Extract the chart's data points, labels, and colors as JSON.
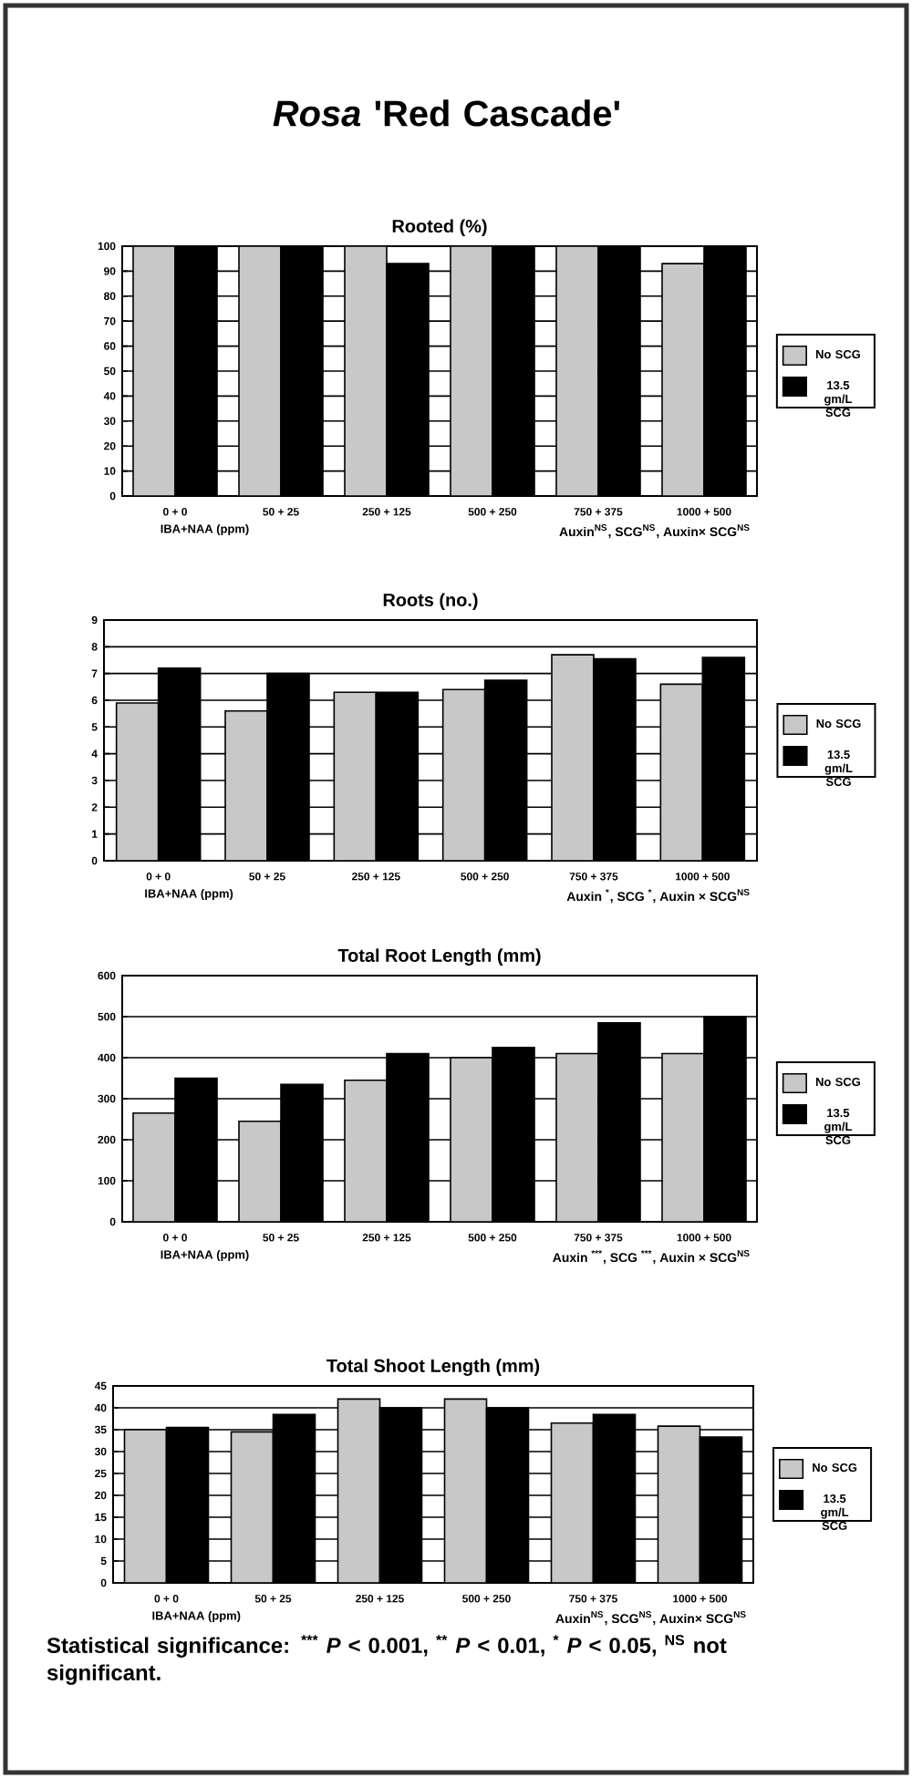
{
  "chart_data": [
    {
      "type": "bar",
      "title": "*Rosa* 'Red Cascade'",
      "subtitle": "Rooted (%)",
      "xlabel": "IBA+NAA (ppm)",
      "categories": [
        "0 + 0",
        "50 + 25",
        "250 + 125",
        "500 + 250",
        "750 + 375",
        "1000 + 500"
      ],
      "series": [
        {
          "name": "No SCG",
          "color": "#c8c8c8",
          "values": [
            100,
            100,
            100,
            100,
            100,
            93
          ]
        },
        {
          "name": "13.5 gm/L SCG",
          "color": "#000000",
          "values": [
            100,
            100,
            93,
            100,
            100,
            100
          ]
        }
      ],
      "ylim": [
        0,
        100
      ],
      "yticks": [
        0,
        10,
        20,
        30,
        40,
        50,
        60,
        70,
        80,
        90,
        100
      ],
      "grid": "y",
      "legend": "right",
      "annotations": [
        "Auxin$^{NS}$, SCG$^{NS}$, Auxin× SCG$^{NS}$"
      ]
    },
    {
      "type": "bar",
      "title": "Roots (no.)",
      "xlabel": "IBA+NAA (ppm)",
      "categories": [
        "0 + 0",
        "50 + 25",
        "250 + 125",
        "500 + 250",
        "750 + 375",
        "1000 + 500"
      ],
      "series": [
        {
          "name": "No SCG",
          "color": "#c8c8c8",
          "values": [
            5.9,
            5.6,
            6.3,
            6.4,
            7.7,
            6.6
          ]
        },
        {
          "name": "13.5 gm/L SCG",
          "color": "#000000",
          "values": [
            7.2,
            7.0,
            6.3,
            6.75,
            7.55,
            7.6
          ]
        }
      ],
      "ylim": [
        0,
        9
      ],
      "yticks": [
        0,
        1,
        2,
        3,
        4,
        5,
        6,
        7,
        8,
        9
      ],
      "grid": "y",
      "legend": "right",
      "annotations": [
        "Auxin $^{*}$, SCG $^{*}$, Auxin × SCG$^{NS}$"
      ]
    },
    {
      "type": "bar",
      "title": "Total Root Length (mm)",
      "xlabel": "IBA+NAA (ppm)",
      "categories": [
        "0 + 0",
        "50 + 25",
        "250 + 125",
        "500 + 250",
        "750 + 375",
        "1000 + 500"
      ],
      "series": [
        {
          "name": "No SCG",
          "color": "#c8c8c8",
          "values": [
            265,
            245,
            345,
            400,
            410,
            410
          ]
        },
        {
          "name": "13.5 gm/L SCG",
          "color": "#000000",
          "values": [
            350,
            335,
            410,
            425,
            485,
            500
          ]
        }
      ],
      "ylim": [
        0,
        600
      ],
      "yticks": [
        0,
        100,
        200,
        300,
        400,
        500,
        600
      ],
      "grid": "y",
      "legend": "right",
      "annotations": [
        "Auxin $^{***}$, SCG $^{***}$, Auxin × SCG$^{NS}$"
      ]
    },
    {
      "type": "bar",
      "title": "Total Shoot Length (mm)",
      "xlabel": "IBA+NAA (ppm)",
      "categories": [
        "0 + 0",
        "50 + 25",
        "250 + 125",
        "500 + 250",
        "750 + 375",
        "1000 + 500"
      ],
      "series": [
        {
          "name": "No SCG",
          "color": "#c8c8c8",
          "values": [
            35,
            34.5,
            42,
            42,
            36.5,
            35.8
          ]
        },
        {
          "name": "13.5 gm/L SCG",
          "color": "#000000",
          "values": [
            35.5,
            38.5,
            40,
            40,
            38.5,
            33.3
          ]
        }
      ],
      "ylim": [
        0,
        45
      ],
      "yticks": [
        0,
        5,
        10,
        15,
        20,
        25,
        30,
        35,
        40,
        45
      ],
      "grid": "y",
      "legend": "right",
      "annotations": [
        "Auxin$^{NS}$, SCG$^{NS}$, Auxin× SCG$^{NS}$",
        "Statistical significance: $^{***}$ *P* < 0.001, $^{**}$ *P* < 0.01, $^{*}$ *P* < 0.05, $^{NS}$ not significant."
      ]
    }
  ]
}
